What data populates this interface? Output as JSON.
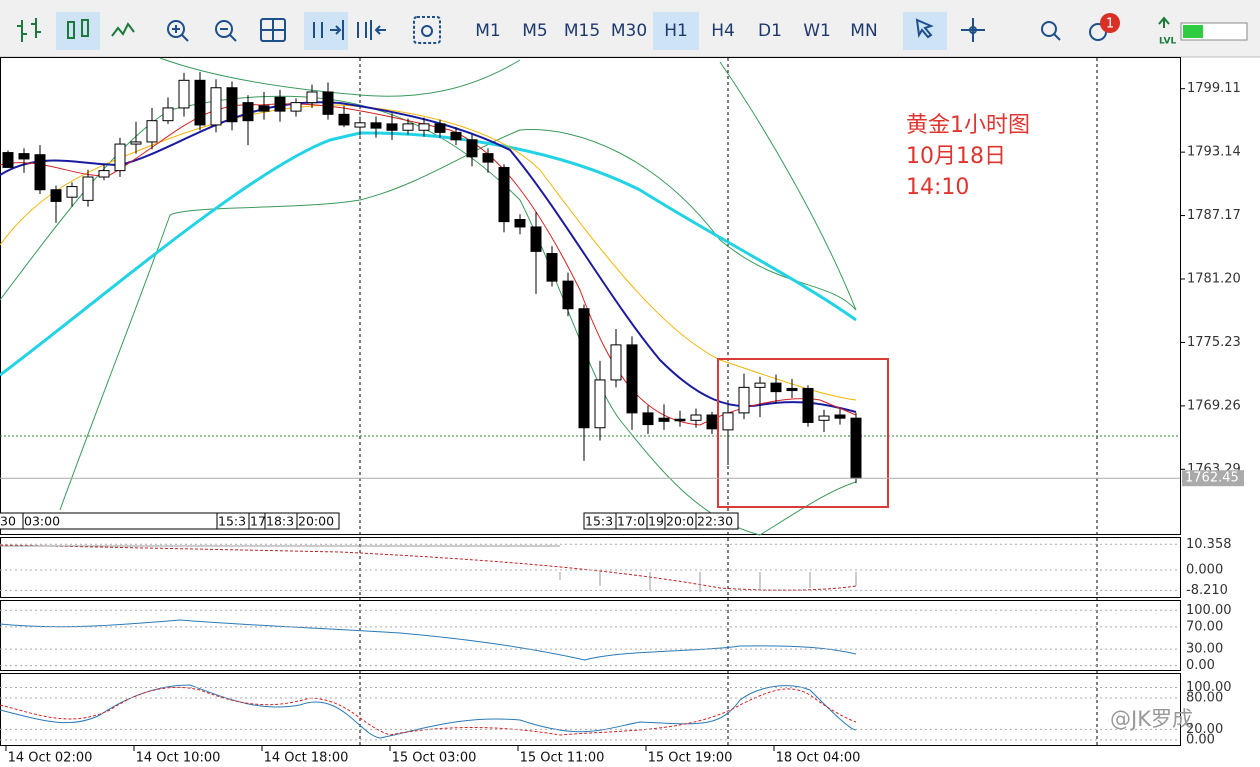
{
  "toolbar": {
    "timeframes": [
      "M1",
      "M5",
      "M15",
      "M30",
      "H1",
      "H4",
      "D1",
      "W1",
      "MN"
    ],
    "active_timeframe": "H1",
    "notification_count": "1",
    "level_label": "LVL"
  },
  "chart": {
    "type": "candlestick",
    "ylim": [
      1757.2,
      1802.0
    ],
    "price_ticks": [
      1799.11,
      1793.14,
      1787.17,
      1781.2,
      1775.23,
      1769.26,
      1763.29
    ],
    "price_tick_labels": [
      "1799.11",
      "1793.14",
      "1787.17",
      "1781.20",
      "1775.23",
      "1769.26",
      "1763.29"
    ],
    "current_price": 1762.45,
    "annotation": [
      "黄金1小时图",
      "10月18日",
      "14:10"
    ],
    "watermark": "@JK罗成",
    "session_labels_left": [
      "30",
      "03:00",
      "15:3",
      "17",
      "18:3",
      "20:00"
    ],
    "session_labels_right": [
      "15:3",
      "17:0",
      "19",
      "20:0",
      "22:30"
    ],
    "time_labels": [
      "14 Oct 02:00",
      "14 Oct 10:00",
      "14 Oct 18:00",
      "15 Oct 03:00",
      "15 Oct 11:00",
      "15 Oct 19:00",
      "18 Oct 04:00"
    ],
    "candles": [
      {
        "open": 1793.1,
        "high": 1793.3,
        "low": 1791.7,
        "close": 1791.7
      },
      {
        "open": 1793.0,
        "high": 1793.5,
        "low": 1791.2,
        "close": 1792.5
      },
      {
        "open": 1792.9,
        "high": 1793.8,
        "low": 1789.2,
        "close": 1789.6
      },
      {
        "open": 1789.6,
        "high": 1790.0,
        "low": 1786.5,
        "close": 1788.5
      },
      {
        "open": 1788.9,
        "high": 1790.3,
        "low": 1788.0,
        "close": 1789.9
      },
      {
        "open": 1788.6,
        "high": 1791.5,
        "low": 1788.0,
        "close": 1790.8
      },
      {
        "open": 1790.8,
        "high": 1792.0,
        "low": 1790.5,
        "close": 1791.4
      },
      {
        "open": 1791.4,
        "high": 1794.5,
        "low": 1790.8,
        "close": 1793.9
      },
      {
        "open": 1793.9,
        "high": 1796.0,
        "low": 1793.0,
        "close": 1794.1
      },
      {
        "open": 1794.1,
        "high": 1797.3,
        "low": 1793.4,
        "close": 1796.1
      },
      {
        "open": 1796.1,
        "high": 1798.3,
        "low": 1795.8,
        "close": 1797.3
      },
      {
        "open": 1797.3,
        "high": 1800.6,
        "low": 1796.5,
        "close": 1799.9
      },
      {
        "open": 1799.9,
        "high": 1800.7,
        "low": 1795.2,
        "close": 1795.7
      },
      {
        "open": 1795.7,
        "high": 1800.0,
        "low": 1795.0,
        "close": 1799.2
      },
      {
        "open": 1799.2,
        "high": 1799.8,
        "low": 1795.2,
        "close": 1796.0
      },
      {
        "open": 1797.8,
        "high": 1798.5,
        "low": 1793.8,
        "close": 1796.1
      },
      {
        "open": 1797.5,
        "high": 1798.8,
        "low": 1796.2,
        "close": 1797.0
      },
      {
        "open": 1798.3,
        "high": 1799.0,
        "low": 1796.0,
        "close": 1797.0
      },
      {
        "open": 1797.0,
        "high": 1798.2,
        "low": 1796.5,
        "close": 1797.8
      },
      {
        "open": 1797.8,
        "high": 1799.5,
        "low": 1797.3,
        "close": 1798.8
      },
      {
        "open": 1798.8,
        "high": 1799.7,
        "low": 1796.2,
        "close": 1796.7
      },
      {
        "open": 1796.7,
        "high": 1797.5,
        "low": 1795.5,
        "close": 1795.7
      },
      {
        "open": 1795.5,
        "high": 1796.5,
        "low": 1794.7,
        "close": 1795.9
      },
      {
        "open": 1795.9,
        "high": 1796.5,
        "low": 1794.5,
        "close": 1795.4
      },
      {
        "open": 1795.8,
        "high": 1796.8,
        "low": 1794.3,
        "close": 1795.2
      },
      {
        "open": 1795.2,
        "high": 1796.3,
        "low": 1794.8,
        "close": 1795.8
      },
      {
        "open": 1795.2,
        "high": 1796.4,
        "low": 1794.6,
        "close": 1795.8
      },
      {
        "open": 1795.8,
        "high": 1796.2,
        "low": 1794.5,
        "close": 1795.0
      },
      {
        "open": 1795.0,
        "high": 1795.5,
        "low": 1793.8,
        "close": 1794.3
      },
      {
        "open": 1794.3,
        "high": 1794.8,
        "low": 1791.8,
        "close": 1792.7
      },
      {
        "open": 1793.0,
        "high": 1793.5,
        "low": 1791.2,
        "close": 1792.2
      },
      {
        "open": 1791.7,
        "high": 1792.0,
        "low": 1785.6,
        "close": 1786.6
      },
      {
        "open": 1786.8,
        "high": 1787.3,
        "low": 1785.4,
        "close": 1786.1
      },
      {
        "open": 1786.1,
        "high": 1787.5,
        "low": 1779.8,
        "close": 1783.8
      },
      {
        "open": 1783.6,
        "high": 1784.3,
        "low": 1780.5,
        "close": 1781.0
      },
      {
        "open": 1781.0,
        "high": 1781.8,
        "low": 1777.7,
        "close": 1778.4
      },
      {
        "open": 1778.4,
        "high": 1778.8,
        "low": 1764.1,
        "close": 1767.2
      },
      {
        "open": 1767.2,
        "high": 1773.5,
        "low": 1766.0,
        "close": 1771.7
      },
      {
        "open": 1771.7,
        "high": 1776.5,
        "low": 1771.0,
        "close": 1775.0
      },
      {
        "open": 1775.0,
        "high": 1775.8,
        "low": 1767.0,
        "close": 1768.6
      },
      {
        "open": 1768.6,
        "high": 1769.3,
        "low": 1766.6,
        "close": 1767.5
      },
      {
        "open": 1768.1,
        "high": 1769.4,
        "low": 1767.0,
        "close": 1767.8
      },
      {
        "open": 1768.0,
        "high": 1768.8,
        "low": 1767.3,
        "close": 1767.9
      },
      {
        "open": 1767.9,
        "high": 1769.0,
        "low": 1767.2,
        "close": 1768.4
      },
      {
        "open": 1768.4,
        "high": 1768.7,
        "low": 1766.6,
        "close": 1767.1
      },
      {
        "open": 1767.0,
        "high": 1769.4,
        "low": 1763.7,
        "close": 1768.6
      },
      {
        "open": 1768.6,
        "high": 1772.3,
        "low": 1768.0,
        "close": 1771.0
      },
      {
        "open": 1771.0,
        "high": 1772.0,
        "low": 1768.2,
        "close": 1771.4
      },
      {
        "open": 1771.4,
        "high": 1772.2,
        "low": 1769.5,
        "close": 1770.6
      },
      {
        "open": 1770.9,
        "high": 1771.8,
        "low": 1770.0,
        "close": 1770.7
      },
      {
        "open": 1770.9,
        "high": 1771.2,
        "low": 1767.3,
        "close": 1767.7
      },
      {
        "open": 1767.9,
        "high": 1768.9,
        "low": 1766.8,
        "close": 1768.3
      },
      {
        "open": 1768.4,
        "high": 1769.0,
        "low": 1767.5,
        "close": 1768.1
      },
      {
        "open": 1768.1,
        "high": 1768.6,
        "low": 1762.0,
        "close": 1762.45
      }
    ]
  },
  "macd": {
    "ylim": [
      -10.5,
      12.5
    ],
    "ticks": [
      10.358,
      {
        "value": 0,
        "label": "0.000"
      },
      {
        "value": -8.21,
        "label": "-8.210"
      }
    ]
  },
  "rsi": {
    "ylim": [
      -6,
      115
    ],
    "ticks": [
      {
        "value": 100,
        "label": "100.00"
      },
      {
        "value": 70,
        "label": "70.00"
      },
      {
        "value": 30,
        "label": "30.00"
      },
      {
        "value": 0,
        "label": "0.00"
      }
    ]
  },
  "stoch": {
    "ylim": [
      -8,
      124
    ],
    "ticks": [
      {
        "value": 100,
        "label": "100.00"
      },
      {
        "value": 80,
        "label": "80.00"
      },
      {
        "value": 20,
        "label": "20.00"
      },
      {
        "value": 0,
        "label": "0.00"
      }
    ]
  }
}
